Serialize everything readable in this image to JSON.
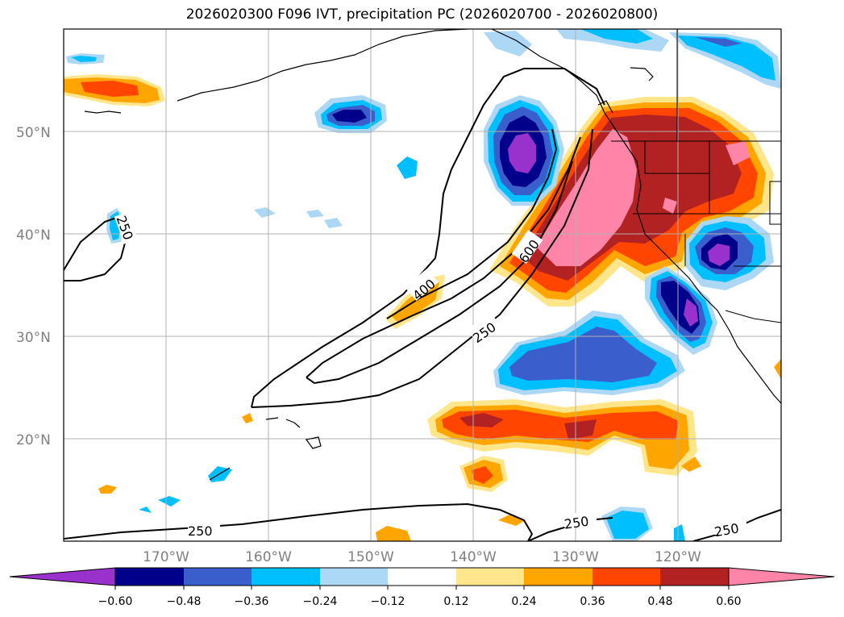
{
  "title": "2026020300 F096 IVT, precipitation PC (2026020700 - 2026020800)",
  "map": {
    "lat_labels": [
      "50°N",
      "40°N",
      "30°N",
      "20°N"
    ],
    "lon_labels": [
      "170°W",
      "160°W",
      "150°W",
      "140°W",
      "130°W",
      "120°W"
    ],
    "ivt_contour_labels": [
      "250",
      "400",
      "600",
      "250",
      "250",
      "250",
      "250"
    ],
    "extent": {
      "lon_min": -180,
      "lon_max": -110,
      "lat_min": 10,
      "lat_max": 60
    }
  },
  "colorbar": {
    "ticks": [
      "−0.60",
      "−0.48",
      "−0.36",
      "−0.24",
      "−0.12",
      "0.12",
      "0.24",
      "0.36",
      "0.48",
      "0.60"
    ],
    "colors": [
      "#9932cc",
      "#00008b",
      "#3a5fcd",
      "#00bfff",
      "#add8f5",
      "#ffffff",
      "#ffe68a",
      "#ffa500",
      "#ff4500",
      "#b22222",
      "#ff85a8"
    ]
  }
}
